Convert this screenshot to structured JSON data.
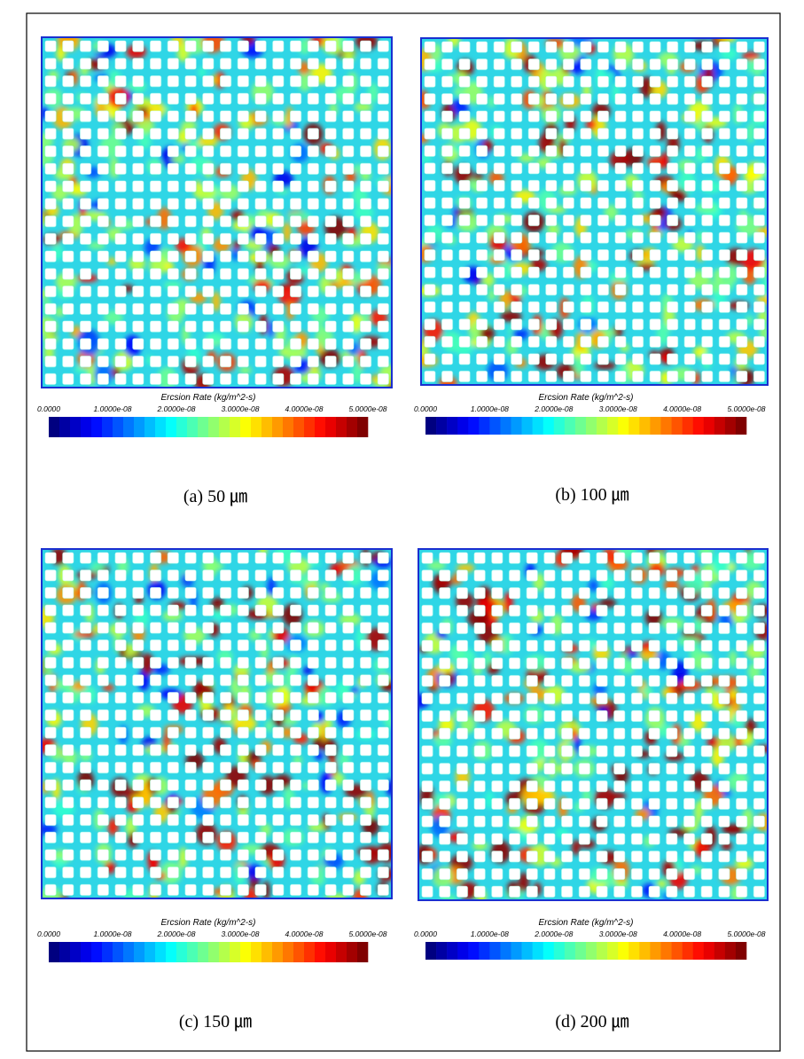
{
  "panels": [
    {
      "colorbar": {
        "title": "Ercsion Rate (kg/m^2-s)",
        "ticks": [
          "0.0000",
          "1.0000e-08",
          "2.0000e-08",
          "3.0000e-08",
          "4.0000e-08",
          "5.0000e-08"
        ]
      },
      "caption": "(a) 50 ㎛"
    },
    {
      "colorbar": {
        "title": "Ercsion Rate (kg/m^2-s)",
        "ticks": [
          "0.0000",
          "1.0000e-08",
          "2.0000e-08",
          "3.0000e-08",
          "4.0000e-08",
          "5.0000e-08"
        ]
      },
      "caption": "(b) 100 ㎛"
    },
    {
      "colorbar": {
        "title": "Ercsion Rate (kg/m^2-s)",
        "ticks": [
          "0.0000",
          "1.0000e-08",
          "2.0000e-08",
          "3.0000e-08",
          "4.0000e-08",
          "5.0000e-08"
        ]
      },
      "caption": "(c) 150 ㎛"
    },
    {
      "colorbar": {
        "title": "Ercsion Rate (kg/m^2-s)",
        "ticks": [
          "0.0000",
          "1.0000e-08",
          "2.0000e-08",
          "3.0000e-08",
          "4.0000e-08",
          "5.0000e-08"
        ]
      },
      "caption": "(d) 200 ㎛"
    }
  ]
}
